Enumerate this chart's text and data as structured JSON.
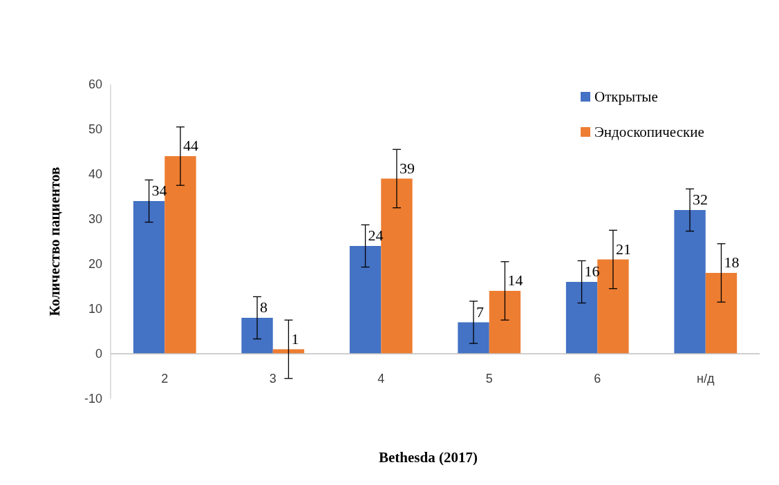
{
  "chart_data": {
    "type": "bar",
    "xlabel": "Bethesda (2017)",
    "ylabel": "Количество пациентов",
    "categories": [
      "2",
      "3",
      "4",
      "5",
      "6",
      "н/д"
    ],
    "series": [
      {
        "name": "Открытые",
        "color": "#4472c4",
        "values": [
          34,
          8,
          24,
          7,
          16,
          32
        ],
        "errors": [
          4.7,
          4.7,
          4.7,
          4.7,
          4.7,
          4.7
        ]
      },
      {
        "name": "Эндоскопические",
        "color": "#ed7d31",
        "values": [
          44,
          1,
          39,
          14,
          21,
          18
        ],
        "errors": [
          6.5,
          6.5,
          6.5,
          6.5,
          6.5,
          6.5
        ]
      }
    ],
    "ylim": [
      -10,
      60
    ],
    "yticks": [
      -10,
      0,
      10,
      20,
      30,
      40,
      50,
      60
    ],
    "grid": false,
    "legend": "top right",
    "data_labels": true
  }
}
